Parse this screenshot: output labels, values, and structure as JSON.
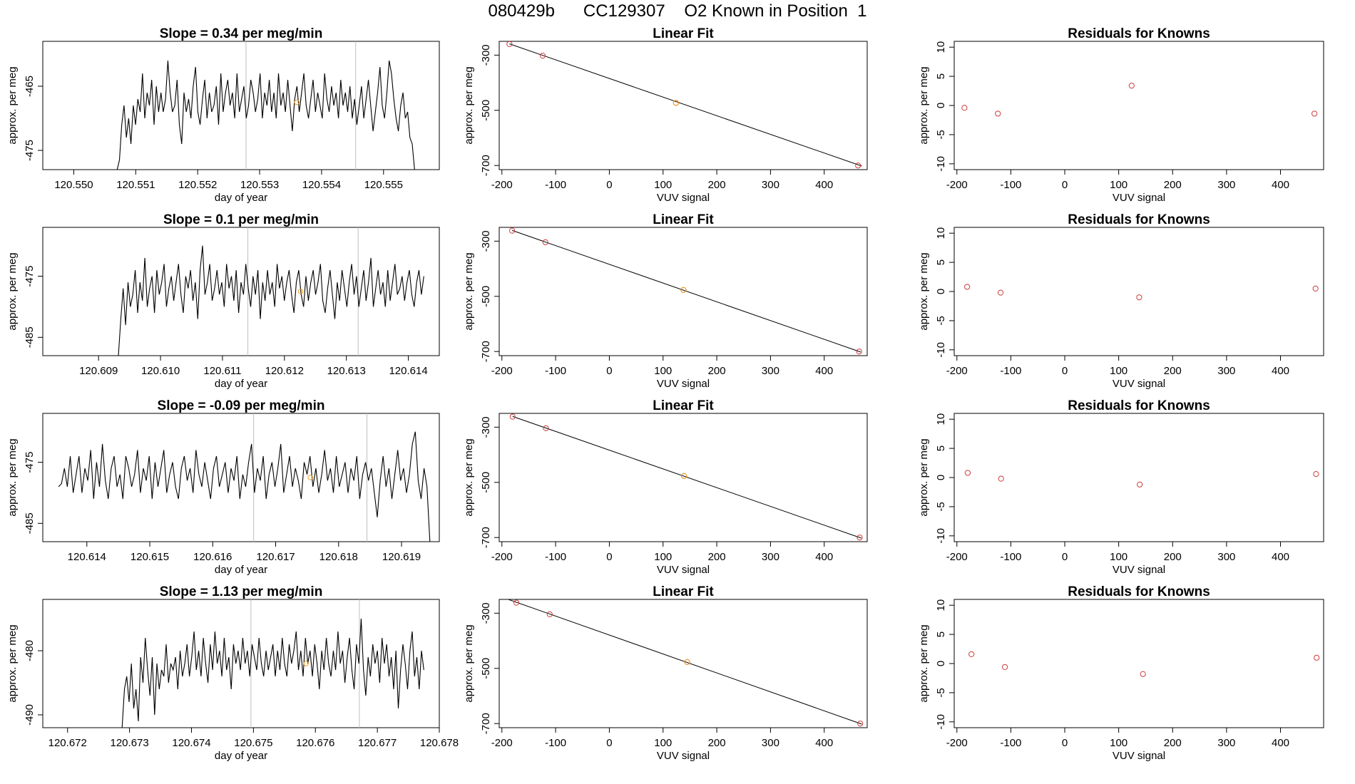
{
  "page": {
    "title": "080429b      CC129307    O2 Known in Position  1"
  },
  "colors": {
    "line": "#000000",
    "point": "#cd3b3b",
    "highlight": "#f0a020",
    "vline": "#bfbfbf",
    "frame": "#000000"
  },
  "chart_data": [
    {
      "row": 1,
      "kind": "timeseries",
      "type": "line",
      "title": "Slope =  0.34  per meg/min",
      "xlabel": "day of year",
      "ylabel": "approx. per meg",
      "xlim": [
        120.5495,
        120.5559
      ],
      "ylim": [
        -478,
        -458
      ],
      "xticks": [
        "120.550",
        "120.551",
        "120.552",
        "120.553",
        "120.554",
        "120.555"
      ],
      "yticks": [
        "-465",
        "-475"
      ],
      "vlines": [
        120.55278,
        120.55455
      ],
      "highlight_point": {
        "x": 120.5536,
        "y": -467.5
      },
      "series": [
        {
          "x_start": 120.5507,
          "x_end": 120.5555,
          "values": [
            -478,
            -476.5,
            -471,
            -468,
            -473,
            -470,
            -474,
            -468,
            -471,
            -467,
            -469,
            -463,
            -470,
            -466,
            -468,
            -464,
            -471,
            -465,
            -469,
            -466,
            -469,
            -467,
            -461,
            -466,
            -469,
            -468,
            -464,
            -471,
            -474,
            -466,
            -469,
            -467,
            -470,
            -465,
            -462,
            -469,
            -471,
            -467,
            -464,
            -470,
            -466,
            -469,
            -468,
            -465,
            -471,
            -463,
            -469,
            -466,
            -464,
            -468,
            -466,
            -470,
            -463,
            -469,
            -467,
            -465,
            -470,
            -468,
            -464,
            -466,
            -469,
            -467,
            -463,
            -470,
            -466,
            -468,
            -464,
            -469,
            -466,
            -470,
            -463,
            -468,
            -466,
            -469,
            -464,
            -468,
            -472,
            -467,
            -465,
            -469,
            -466,
            -463,
            -468,
            -470,
            -467,
            -464,
            -469,
            -466,
            -468,
            -470,
            -463,
            -467,
            -469,
            -465,
            -468,
            -466,
            -470,
            -464,
            -468,
            -466,
            -469,
            -465,
            -470,
            -467,
            -471,
            -468,
            -465,
            -470,
            -467,
            -464,
            -468,
            -472,
            -469,
            -466,
            -462,
            -468,
            -470,
            -466,
            -461,
            -463,
            -467,
            -470,
            -472,
            -468,
            -466,
            -470,
            -469,
            -473,
            -474,
            -478
          ]
        }
      ]
    },
    {
      "row": 1,
      "kind": "fit",
      "type": "scatter",
      "title": "Linear Fit",
      "xlabel": "VUV signal",
      "ylabel": "approx. per meg",
      "xlim": [
        -205,
        480
      ],
      "ylim": [
        -715,
        -250
      ],
      "xticks": [
        -200,
        -100,
        0,
        100,
        200,
        300,
        400
      ],
      "yticks": [
        -300,
        -500,
        -700
      ],
      "points": [
        {
          "x": -186,
          "y": -260
        },
        {
          "x": -124,
          "y": -302
        },
        {
          "x": 124,
          "y": -473
        },
        {
          "x": 463,
          "y": -700
        }
      ],
      "highlight_point": {
        "x": 124,
        "y": -473
      },
      "fit_line": {
        "x": [
          -186,
          470
        ],
        "y": [
          -259,
          -702
        ]
      }
    },
    {
      "row": 1,
      "kind": "residuals",
      "type": "scatter",
      "title": "Residuals for Knowns",
      "xlabel": "VUV signal",
      "ylabel": "approx. per meg",
      "xlim": [
        -205,
        480
      ],
      "ylim": [
        -11,
        11
      ],
      "xticks": [
        -200,
        -100,
        0,
        100,
        200,
        300,
        400
      ],
      "yticks": [
        10,
        5,
        0,
        -5,
        -10
      ],
      "points": [
        {
          "x": -186,
          "y": -0.4
        },
        {
          "x": -124,
          "y": -1.4
        },
        {
          "x": 124,
          "y": 3.4
        },
        {
          "x": 463,
          "y": -1.4
        }
      ]
    },
    {
      "row": 2,
      "kind": "timeseries",
      "type": "line",
      "title": "Slope =  0.1  per meg/min",
      "xlabel": "day of year",
      "ylabel": "approx. per meg",
      "xlim": [
        120.6081,
        120.6145
      ],
      "ylim": [
        -488,
        -467
      ],
      "xticks": [
        "120.609",
        "120.610",
        "120.611",
        "120.612",
        "120.613",
        "120.614"
      ],
      "yticks": [
        "-475",
        "-485"
      ],
      "vlines": [
        120.61141,
        120.61319
      ],
      "highlight_point": {
        "x": 120.61226,
        "y": -477.5
      },
      "series": [
        {
          "x_start": 120.60932,
          "x_end": 120.61425,
          "values": [
            -488,
            -482,
            -477,
            -483,
            -476,
            -480,
            -478,
            -474,
            -481,
            -476,
            -479,
            -472,
            -480,
            -477,
            -475,
            -481,
            -474,
            -478,
            -476,
            -473,
            -480,
            -477,
            -475,
            -479,
            -476,
            -473,
            -478,
            -481,
            -475,
            -477,
            -474,
            -479,
            -476,
            -482,
            -474,
            -470,
            -478,
            -476,
            -473,
            -479,
            -477,
            -474,
            -478,
            -476,
            -480,
            -473,
            -477,
            -475,
            -479,
            -474,
            -481,
            -476,
            -478,
            -473,
            -477,
            -480,
            -475,
            -478,
            -474,
            -482,
            -476,
            -479,
            -474,
            -478,
            -476,
            -480,
            -473,
            -477,
            -475,
            -479,
            -476,
            -474,
            -478,
            -481,
            -476,
            -474,
            -478,
            -480,
            -475,
            -479,
            -476,
            -474,
            -478,
            -476,
            -473,
            -479,
            -481,
            -477,
            -474,
            -478,
            -482,
            -476,
            -479,
            -474,
            -477,
            -480,
            -476,
            -473,
            -478,
            -475,
            -480,
            -477,
            -474,
            -479,
            -476,
            -472,
            -480,
            -477,
            -474,
            -478,
            -476,
            -480,
            -474,
            -479,
            -476,
            -473,
            -478,
            -477,
            -475,
            -479,
            -476,
            -474,
            -478,
            -480,
            -476,
            -474,
            -478,
            -475
          ]
        }
      ]
    },
    {
      "row": 2,
      "kind": "fit",
      "type": "scatter",
      "title": "Linear Fit",
      "xlabel": "VUV signal",
      "ylabel": "approx. per meg",
      "xlim": [
        -205,
        480
      ],
      "ylim": [
        -715,
        -250
      ],
      "xticks": [
        -200,
        -100,
        0,
        100,
        200,
        300,
        400
      ],
      "yticks": [
        -300,
        -500,
        -700
      ],
      "points": [
        {
          "x": -181,
          "y": -262
        },
        {
          "x": -119,
          "y": -304
        },
        {
          "x": 138,
          "y": -477
        },
        {
          "x": 465,
          "y": -700
        }
      ],
      "highlight_point": {
        "x": 138,
        "y": -477
      },
      "fit_line": {
        "x": [
          -181,
          468
        ],
        "y": [
          -261,
          -702
        ]
      }
    },
    {
      "row": 2,
      "kind": "residuals",
      "type": "scatter",
      "title": "Residuals for Knowns",
      "xlabel": "VUV signal",
      "ylabel": "approx. per meg",
      "xlim": [
        -205,
        480
      ],
      "ylim": [
        -11,
        11
      ],
      "xticks": [
        -200,
        -100,
        0,
        100,
        200,
        300,
        400
      ],
      "yticks": [
        10,
        5,
        0,
        -5,
        -10
      ],
      "points": [
        {
          "x": -181,
          "y": 0.8
        },
        {
          "x": -119,
          "y": -0.2
        },
        {
          "x": 138,
          "y": -1.0
        },
        {
          "x": 465,
          "y": 0.5
        }
      ]
    },
    {
      "row": 3,
      "kind": "timeseries",
      "type": "line",
      "title": "Slope =  -0.09  per meg/min",
      "xlabel": "day of year",
      "ylabel": "approx. per meg",
      "xlim": [
        120.6133,
        120.6196
      ],
      "ylim": [
        -488,
        -467
      ],
      "xticks": [
        "120.614",
        "120.615",
        "120.616",
        "120.617",
        "120.618",
        "120.619"
      ],
      "yticks": [
        "-475",
        "-485"
      ],
      "vlines": [
        120.61665,
        120.61845
      ],
      "highlight_point": {
        "x": 120.61755,
        "y": -477.5
      },
      "series": [
        {
          "x_start": 120.61355,
          "x_end": 120.61945,
          "values": [
            -479,
            -478.5,
            -476,
            -479,
            -474,
            -480,
            -477,
            -474,
            -480,
            -476,
            -478,
            -473,
            -481,
            -475,
            -479,
            -472,
            -478,
            -481,
            -476,
            -474,
            -479,
            -477,
            -481,
            -474,
            -476,
            -479,
            -477,
            -473,
            -480,
            -476,
            -478,
            -474,
            -481,
            -475,
            -479,
            -476,
            -473,
            -480,
            -477,
            -475,
            -479,
            -481,
            -476,
            -474,
            -478,
            -476,
            -480,
            -473,
            -477,
            -479,
            -475,
            -478,
            -481,
            -476,
            -474,
            -479,
            -477,
            -475,
            -480,
            -476,
            -478,
            -474,
            -481,
            -477,
            -479,
            -475,
            -472,
            -480,
            -476,
            -478,
            -474,
            -481,
            -477,
            -475,
            -479,
            -476,
            -472,
            -480,
            -477,
            -474,
            -479,
            -476,
            -478,
            -481,
            -475,
            -477,
            -474,
            -479,
            -476,
            -480,
            -477,
            -473,
            -478,
            -476,
            -480,
            -474,
            -479,
            -477,
            -475,
            -480,
            -476,
            -478,
            -474,
            -481,
            -477,
            -475,
            -478,
            -476,
            -480,
            -484,
            -478,
            -474,
            -479,
            -476,
            -481,
            -477,
            -473,
            -478,
            -476,
            -480,
            -477,
            -472,
            -470,
            -478,
            -481,
            -476,
            -479,
            -488
          ]
        }
      ]
    },
    {
      "row": 3,
      "kind": "fit",
      "type": "scatter",
      "title": "Linear Fit",
      "xlabel": "VUV signal",
      "ylabel": "approx. per meg",
      "xlim": [
        -205,
        480
      ],
      "ylim": [
        -715,
        -250
      ],
      "xticks": [
        -200,
        -100,
        0,
        100,
        200,
        300,
        400
      ],
      "yticks": [
        -300,
        -500,
        -700
      ],
      "points": [
        {
          "x": -180,
          "y": -262
        },
        {
          "x": -118,
          "y": -304
        },
        {
          "x": 139,
          "y": -477
        },
        {
          "x": 466,
          "y": -700
        }
      ],
      "highlight_point": {
        "x": 139,
        "y": -477
      },
      "fit_line": {
        "x": [
          -180,
          469
        ],
        "y": [
          -261,
          -702
        ]
      }
    },
    {
      "row": 3,
      "kind": "residuals",
      "type": "scatter",
      "title": "Residuals for Knowns",
      "xlabel": "VUV signal",
      "ylabel": "approx. per meg",
      "xlim": [
        -205,
        480
      ],
      "ylim": [
        -11,
        11
      ],
      "xticks": [
        -200,
        -100,
        0,
        100,
        200,
        300,
        400
      ],
      "yticks": [
        10,
        5,
        0,
        -5,
        -10
      ],
      "points": [
        {
          "x": -180,
          "y": 0.8
        },
        {
          "x": -118,
          "y": -0.2
        },
        {
          "x": 139,
          "y": -1.2
        },
        {
          "x": 466,
          "y": 0.6
        }
      ]
    },
    {
      "row": 4,
      "kind": "timeseries",
      "type": "line",
      "title": "Slope =  1.13  per meg/min",
      "xlabel": "day of year",
      "ylabel": "approx. per meg",
      "xlim": [
        120.6716,
        120.678
      ],
      "ylim": [
        -492,
        -472
      ],
      "xticks": [
        "120.672",
        "120.673",
        "120.674",
        "120.675",
        "120.676",
        "120.677",
        "120.678"
      ],
      "yticks": [
        "-480",
        "-490"
      ],
      "vlines": [
        120.67496,
        120.67671
      ],
      "highlight_point": {
        "x": 120.67585,
        "y": -482
      },
      "series": [
        {
          "x_start": 120.67288,
          "x_end": 120.67775,
          "values": [
            -492,
            -486,
            -484,
            -488,
            -482,
            -489,
            -486,
            -491,
            -481,
            -485,
            -478,
            -483,
            -487,
            -481,
            -490,
            -482,
            -486,
            -483,
            -484,
            -479,
            -485,
            -482,
            -483,
            -481,
            -486,
            -480,
            -484,
            -482,
            -479,
            -484,
            -481,
            -477,
            -483,
            -480,
            -484,
            -478,
            -482,
            -485,
            -479,
            -483,
            -477,
            -482,
            -480,
            -484,
            -478,
            -483,
            -481,
            -486,
            -479,
            -482,
            -480,
            -483,
            -478,
            -482,
            -480,
            -484,
            -479,
            -481,
            -483,
            -478,
            -482,
            -484,
            -480,
            -483,
            -481,
            -479,
            -484,
            -480,
            -483,
            -478,
            -482,
            -484,
            -479,
            -482,
            -480,
            -477,
            -483,
            -480,
            -484,
            -478,
            -482,
            -480,
            -484,
            -479,
            -482,
            -486,
            -480,
            -483,
            -478,
            -482,
            -484,
            -480,
            -483,
            -477,
            -482,
            -480,
            -485,
            -481,
            -478,
            -483,
            -486,
            -479,
            -482,
            -475,
            -483,
            -487,
            -481,
            -484,
            -479,
            -482,
            -480,
            -485,
            -478,
            -482,
            -479,
            -484,
            -481,
            -486,
            -480,
            -489,
            -483,
            -479,
            -482,
            -486,
            -480,
            -477,
            -484,
            -481,
            -486,
            -480,
            -483
          ]
        }
      ]
    },
    {
      "row": 4,
      "kind": "fit",
      "type": "scatter",
      "title": "Linear Fit",
      "xlabel": "VUV signal",
      "ylabel": "approx. per meg",
      "xlim": [
        -205,
        480
      ],
      "ylim": [
        -715,
        -250
      ],
      "xticks": [
        -200,
        -100,
        0,
        100,
        200,
        300,
        400
      ],
      "yticks": [
        -300,
        -500,
        -700
      ],
      "points": [
        {
          "x": -173,
          "y": -262
        },
        {
          "x": -111,
          "y": -304
        },
        {
          "x": 145,
          "y": -477
        },
        {
          "x": 467,
          "y": -700
        }
      ],
      "highlight_point": {
        "x": 145,
        "y": -477
      },
      "fit_line": {
        "x": [
          -188,
          470
        ],
        "y": [
          -250,
          -702
        ]
      }
    },
    {
      "row": 4,
      "kind": "residuals",
      "type": "scatter",
      "title": "Residuals for Knowns",
      "xlabel": "VUV signal",
      "ylabel": "approx. per meg",
      "xlim": [
        -205,
        480
      ],
      "ylim": [
        -11,
        11
      ],
      "xticks": [
        -200,
        -100,
        0,
        100,
        200,
        300,
        400
      ],
      "yticks": [
        10,
        5,
        0,
        -5,
        -10
      ],
      "points": [
        {
          "x": -173,
          "y": 1.6
        },
        {
          "x": -111,
          "y": -0.6
        },
        {
          "x": 145,
          "y": -1.8
        },
        {
          "x": 467,
          "y": 1.0
        }
      ]
    }
  ]
}
